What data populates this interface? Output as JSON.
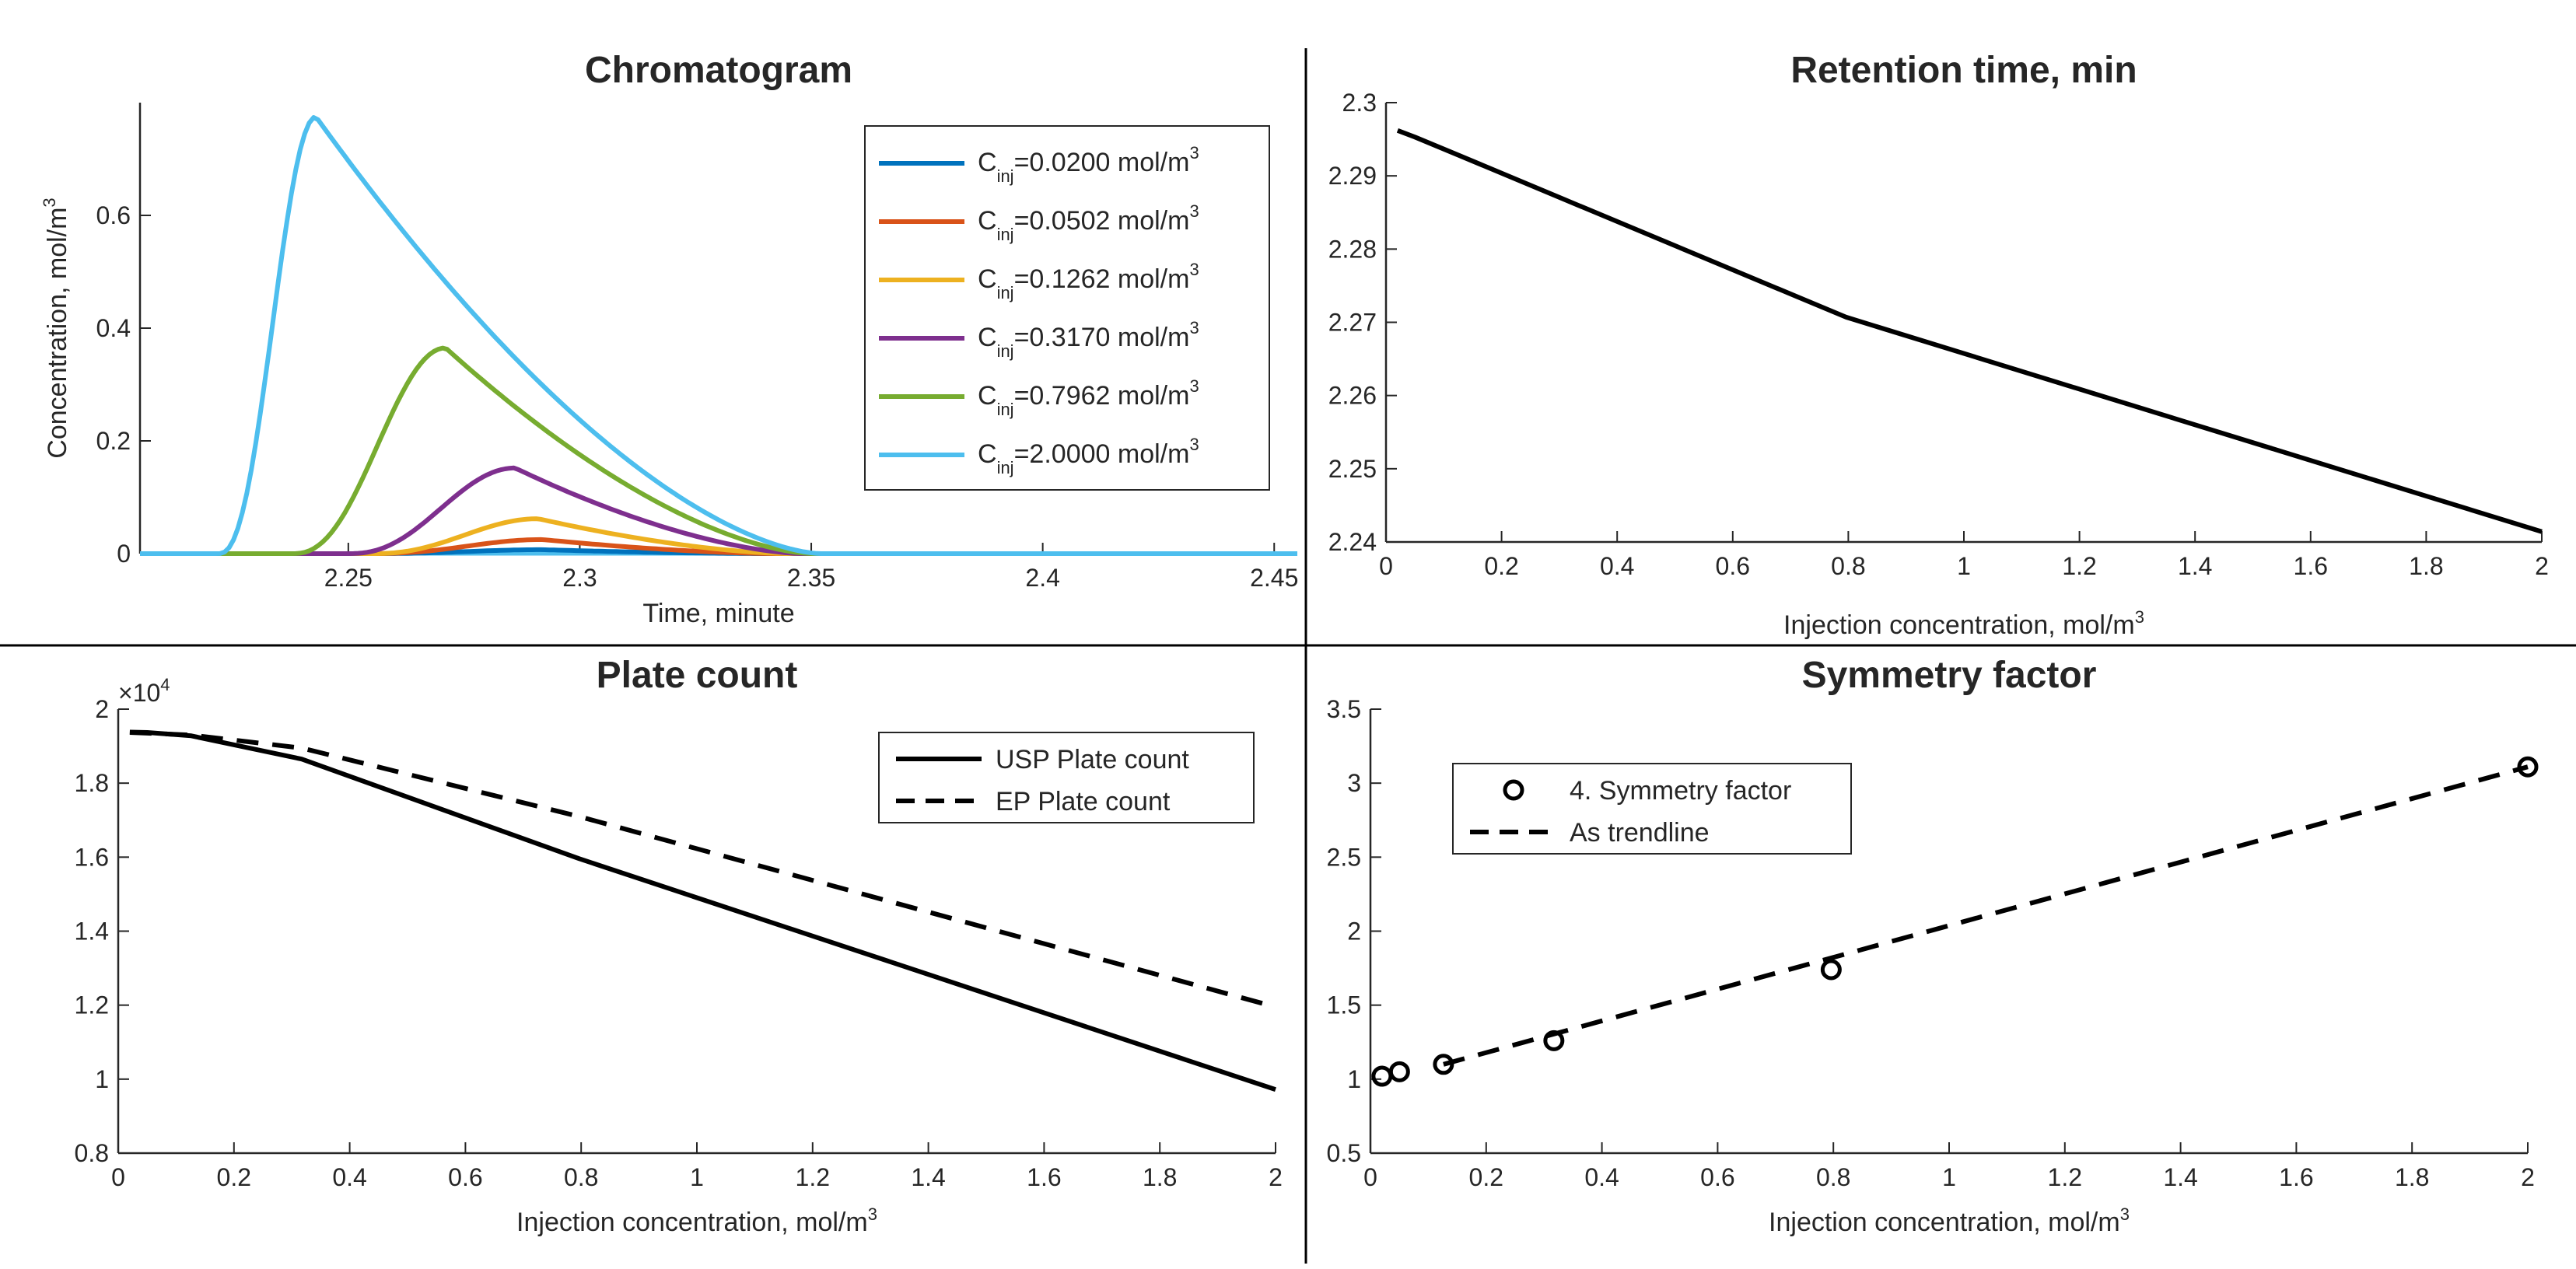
{
  "chart_data": [
    {
      "type": "line",
      "title": "Chromatogram",
      "xlabel": "Time, minute",
      "ylabel": "Concentration, mol/m",
      "ylabel_sup": "3",
      "xlim": [
        2.205,
        2.455
      ],
      "ylim": [
        0,
        0.8
      ],
      "xticks": [
        2.25,
        2.3,
        2.35,
        2.4,
        2.45
      ],
      "xtick_labels": [
        "2.25",
        "2.3",
        "2.35",
        "2.4",
        "2.45"
      ],
      "yticks": [
        0,
        0.2,
        0.4,
        0.6
      ],
      "ytick_labels": [
        "0",
        "0.2",
        "0.4",
        "0.6"
      ],
      "legend": "top-right",
      "peak_model": "exponentially-tailed peak",
      "series": [
        {
          "name": "C",
          "sub": "inj",
          "eq": "=0.0200 mol/m",
          "sup": "3",
          "color": "#0072BD",
          "start": 2.255,
          "peak_time": 2.292,
          "peak_height": 0.007,
          "end": 2.34
        },
        {
          "name": "C",
          "sub": "inj",
          "eq": "=0.0502 mol/m",
          "sup": "3",
          "color": "#D95319",
          "start": 2.255,
          "peak_time": 2.292,
          "peak_height": 0.025,
          "end": 2.342
        },
        {
          "name": "C",
          "sub": "inj",
          "eq": "=0.1262 mol/m",
          "sup": "3",
          "color": "#EDB120",
          "start": 2.255,
          "peak_time": 2.291,
          "peak_height": 0.062,
          "end": 2.345
        },
        {
          "name": "C",
          "sub": "inj",
          "eq": "=0.3170 mol/m",
          "sup": "3",
          "color": "#7E2F8E",
          "start": 2.25,
          "peak_time": 2.286,
          "peak_height": 0.152,
          "end": 2.348
        },
        {
          "name": "C",
          "sub": "inj",
          "eq": "=0.7962 mol/m",
          "sup": "3",
          "color": "#77AC30",
          "start": 2.238,
          "peak_time": 2.271,
          "peak_height": 0.365,
          "end": 2.35
        },
        {
          "name": "C",
          "sub": "inj",
          "eq": "=2.0000 mol/m",
          "sup": "3",
          "color": "#4DBEEE",
          "start": 2.222,
          "peak_time": 2.243,
          "peak_height": 0.775,
          "end": 2.352
        }
      ]
    },
    {
      "type": "line",
      "title": "Retention time, min",
      "xlabel": "Injection concentration, mol/m",
      "xlabel_sup": "3",
      "xlim": [
        0,
        2
      ],
      "ylim": [
        2.24,
        2.3
      ],
      "xticks": [
        0,
        0.2,
        0.4,
        0.6,
        0.8,
        1,
        1.2,
        1.4,
        1.6,
        1.8,
        2
      ],
      "xtick_labels": [
        "0",
        "0.2",
        "0.4",
        "0.6",
        "0.8",
        "1",
        "1.2",
        "1.4",
        "1.6",
        "1.8",
        "2"
      ],
      "yticks": [
        2.24,
        2.25,
        2.26,
        2.27,
        2.28,
        2.29,
        2.3
      ],
      "ytick_labels": [
        "2.24",
        "2.25",
        "2.26",
        "2.27",
        "2.28",
        "2.29",
        "2.3"
      ],
      "series": [
        {
          "color": "#000000",
          "x": [
            0.02,
            0.0502,
            0.1262,
            0.317,
            0.7962,
            2.0
          ],
          "y": [
            2.2962,
            2.2953,
            2.2928,
            2.2865,
            2.2707,
            2.2414
          ]
        }
      ]
    },
    {
      "type": "line",
      "title": "Plate count",
      "xlabel": "Injection concentration, mol/m",
      "xlabel_sup": "3",
      "exponent_label": "×10",
      "exponent_sup": "4",
      "xlim": [
        0,
        2
      ],
      "ylim": [
        8000,
        20000
      ],
      "xticks": [
        0,
        0.2,
        0.4,
        0.6,
        0.8,
        1,
        1.2,
        1.4,
        1.6,
        1.8,
        2
      ],
      "xtick_labels": [
        "0",
        "0.2",
        "0.4",
        "0.6",
        "0.8",
        "1",
        "1.2",
        "1.4",
        "1.6",
        "1.8",
        "2"
      ],
      "yticks": [
        8000,
        10000,
        12000,
        14000,
        16000,
        18000,
        20000
      ],
      "ytick_labels": [
        "0.8",
        "1",
        "1.2",
        "1.4",
        "1.6",
        "1.8",
        "2"
      ],
      "legend": "top-right",
      "series": [
        {
          "name": "USP Plate count",
          "dash": "solid",
          "color": "#000000",
          "x": [
            0.02,
            0.0502,
            0.1262,
            0.317,
            0.7962,
            2.0
          ],
          "y": [
            19380,
            19370,
            19280,
            18650,
            15960,
            9720
          ]
        },
        {
          "name": "EP Plate count",
          "dash": "dashed",
          "color": "#000000",
          "x": [
            0.02,
            0.0502,
            0.1262,
            0.317,
            0.7962,
            2.0
          ],
          "y": [
            19370,
            19350,
            19300,
            18950,
            17100,
            11950
          ]
        }
      ]
    },
    {
      "type": "scatter",
      "title": "Symmetry factor",
      "xlabel": "Injection concentration, mol/m",
      "xlabel_sup": "3",
      "xlim": [
        0,
        2
      ],
      "ylim": [
        0.5,
        3.5
      ],
      "xticks": [
        0,
        0.2,
        0.4,
        0.6,
        0.8,
        1,
        1.2,
        1.4,
        1.6,
        1.8,
        2
      ],
      "xtick_labels": [
        "0",
        "0.2",
        "0.4",
        "0.6",
        "0.8",
        "1",
        "1.2",
        "1.4",
        "1.6",
        "1.8",
        "2"
      ],
      "yticks": [
        0.5,
        1,
        1.5,
        2,
        2.5,
        3,
        3.5
      ],
      "ytick_labels": [
        "0.5",
        "1",
        "1.5",
        "2",
        "2.5",
        "3",
        "3.5"
      ],
      "legend": "top-left",
      "series": [
        {
          "name": "4. Symmetry factor",
          "marker": "circle",
          "color": "#000000",
          "x": [
            0.02,
            0.0502,
            0.1262,
            0.317,
            0.7962,
            2.0
          ],
          "y": [
            1.02,
            1.05,
            1.1,
            1.26,
            1.74,
            3.11
          ]
        },
        {
          "name": "As trendline",
          "dash": "dashed",
          "color": "#000000",
          "x": [
            0.1262,
            2.0
          ],
          "y": [
            1.1,
            3.11
          ]
        }
      ]
    }
  ]
}
